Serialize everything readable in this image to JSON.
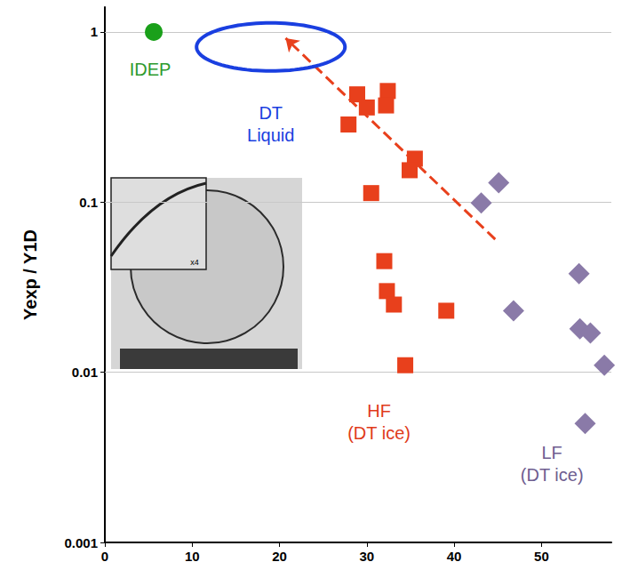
{
  "chart_data": {
    "type": "scatter",
    "ylabel": "Yexp / Y1D",
    "log": "y",
    "grid": true,
    "xlim": [
      0,
      58
    ],
    "xticks": [
      0,
      10,
      20,
      30,
      40,
      50
    ],
    "ylim": [
      0.001,
      1.4
    ],
    "yticks": [
      0.001,
      0.01,
      0.1,
      1
    ],
    "series": [
      {
        "color": "#1aa01a",
        "marker": "circle",
        "x": [
          5.6
        ],
        "values": [
          1.0
        ]
      },
      {
        "color": "#e8401c",
        "marker": "square",
        "x": [
          27.9,
          28.9,
          30.0,
          32.4,
          32.2,
          35.5,
          34.9,
          30.5,
          32.0,
          32.3,
          33.1,
          39.1,
          34.4
        ],
        "values": [
          0.286,
          0.43,
          0.36,
          0.45,
          0.37,
          0.18,
          0.154,
          0.113,
          0.045,
          0.03,
          0.025,
          0.023,
          0.011
        ]
      },
      {
        "color": "#8a7aa8",
        "marker": "diamond",
        "x": [
          43.1,
          45.1,
          46.8,
          54.3,
          54.4,
          55.6,
          57.2,
          55.0
        ],
        "values": [
          0.099,
          0.13,
          0.023,
          0.038,
          0.018,
          0.017,
          0.011,
          0.005
        ]
      }
    ],
    "arrows": [
      {
        "color": "#e8401c",
        "line_style": "dashed",
        "x": [
          44.7,
          20.7
        ],
        "values": [
          0.0605,
          0.92
        ]
      }
    ],
    "regions": [
      {
        "color": "#1a3fe0",
        "x_range": [
          10.5,
          27.5
        ],
        "y_range": [
          0.59,
          1.13
        ]
      }
    ],
    "annotations": [
      {
        "text": "IDEP",
        "color": "#2e9a2e",
        "x": 5.2,
        "y": 0.605
      },
      {
        "text": "DT\nLiquid",
        "color": "#1a3fe0",
        "x": 19.0,
        "y": 0.289
      },
      {
        "text": "HF\n(DT ice)",
        "color": "#e03a1a",
        "x": 31.4,
        "y": 0.0051
      },
      {
        "text": "LF\n(DT ice)",
        "color": "#6e5e90",
        "x": 51.2,
        "y": 0.0029
      }
    ],
    "inset": {
      "label": "x4"
    }
  }
}
